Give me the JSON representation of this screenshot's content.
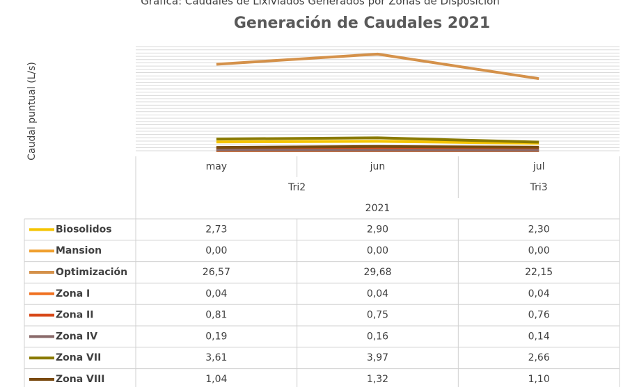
{
  "chart_data": {
    "type": "line",
    "supertitle": "Gráfica: Caudales de Lixiviados Generados por Zonas de Disposición",
    "title": "Generación de Caudales 2021",
    "y_label": "Caudal puntual (L/s)",
    "categories": [
      "may",
      "jun",
      "jul"
    ],
    "category_groups": [
      {
        "label": "Tri2",
        "categories": [
          "may",
          "jun"
        ]
      },
      {
        "label": "Tri3",
        "categories": [
          "jul"
        ]
      }
    ],
    "year": "2021",
    "ylim": [
      0,
      32
    ],
    "yticks": [
      0,
      1,
      2,
      3,
      4,
      5,
      6,
      7,
      8,
      9,
      10,
      11,
      12,
      13,
      14,
      15,
      16,
      17,
      18,
      19,
      20,
      21,
      22,
      23,
      24,
      25,
      26,
      27,
      28,
      29,
      30,
      31,
      32
    ],
    "show_ytick_labels": false,
    "grid": true,
    "data_table": true,
    "series": [
      {
        "name": "Biosolidos",
        "color": "#f5c400",
        "values": [
          2.73,
          2.9,
          2.3
        ],
        "value_labels": [
          "2,73",
          "2,90",
          "2,30"
        ]
      },
      {
        "name": "Mansion",
        "color": "#f0a030",
        "values": [
          0.0,
          0.0,
          0.0
        ],
        "value_labels": [
          "0,00",
          "0,00",
          "0,00"
        ]
      },
      {
        "name": "Optimización",
        "color": "#d4914a",
        "values": [
          26.57,
          29.68,
          22.15
        ],
        "value_labels": [
          "26,57",
          "29,68",
          "22,15"
        ]
      },
      {
        "name": "Zona I",
        "color": "#f07020",
        "values": [
          0.04,
          0.04,
          0.04
        ],
        "value_labels": [
          "0,04",
          "0,04",
          "0,04"
        ]
      },
      {
        "name": "Zona II",
        "color": "#d84a1a",
        "values": [
          0.81,
          0.75,
          0.76
        ],
        "value_labels": [
          "0,81",
          "0,75",
          "0,76"
        ]
      },
      {
        "name": "Zona IV",
        "color": "#8a6a6a",
        "values": [
          0.19,
          0.16,
          0.14
        ],
        "value_labels": [
          "0,19",
          "0,16",
          "0,14"
        ]
      },
      {
        "name": "Zona VII",
        "color": "#8a7a00",
        "values": [
          3.61,
          3.97,
          2.66
        ],
        "value_labels": [
          "3,61",
          "3,97",
          "2,66"
        ]
      },
      {
        "name": "Zona VIII",
        "color": "#7a4a10",
        "values": [
          1.04,
          1.32,
          1.1
        ],
        "value_labels": [
          "1,04",
          "1,32",
          "1,10"
        ]
      }
    ]
  }
}
